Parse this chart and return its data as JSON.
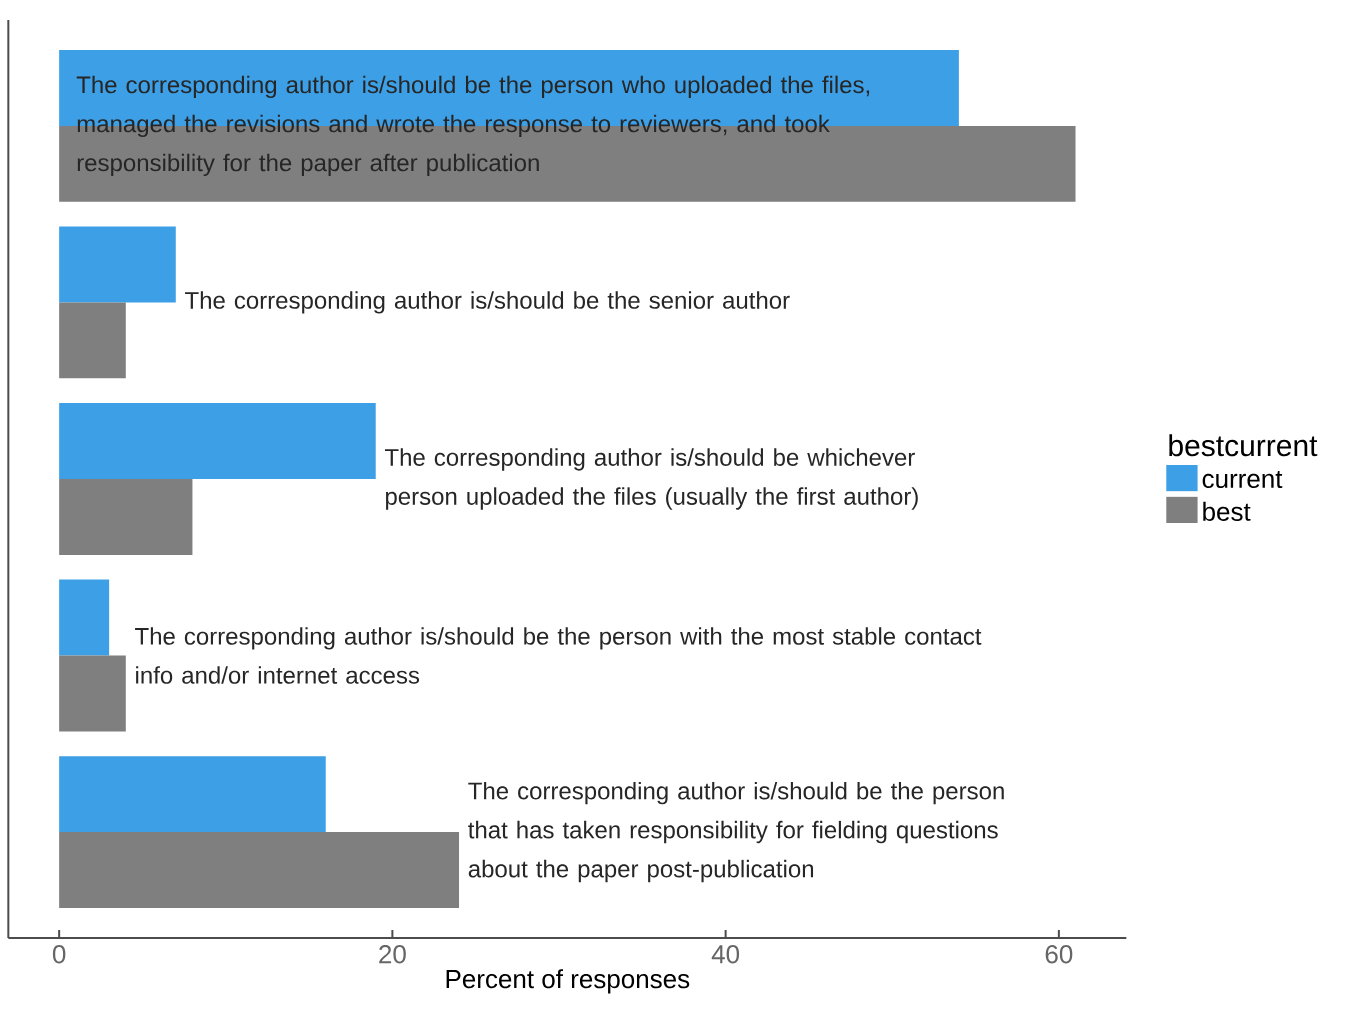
{
  "chart_data": {
    "type": "bar",
    "orientation": "horizontal",
    "categories": [
      "The corresponding author is/should be the person who uploaded the files, managed the revisions and wrote the response to reviewers, and took responsibility for the paper after publication",
      "The corresponding author is/should be the senior author",
      "The corresponding author is/should be whichever person uploaded the files (usually the first author)",
      "The corresponding author is/should be the person with the most stable contact info and/or internet access",
      "The corresponding author is/should be the person that has taken responsibility for fielding questions about the paper post-publication"
    ],
    "series": [
      {
        "name": "current",
        "color": "#3d9fe5",
        "values": [
          54,
          7,
          19,
          3,
          16
        ]
      },
      {
        "name": "best",
        "color": "#7f7f7f",
        "values": [
          61,
          4,
          8,
          4,
          24
        ]
      }
    ],
    "xlabel": "Percent of responses",
    "legend_title": "bestcurrent",
    "legend": "right",
    "xlim": [
      -3.05,
      64.05
    ],
    "xticks": [
      0,
      20,
      40,
      60
    ],
    "tick_labels": "x"
  }
}
